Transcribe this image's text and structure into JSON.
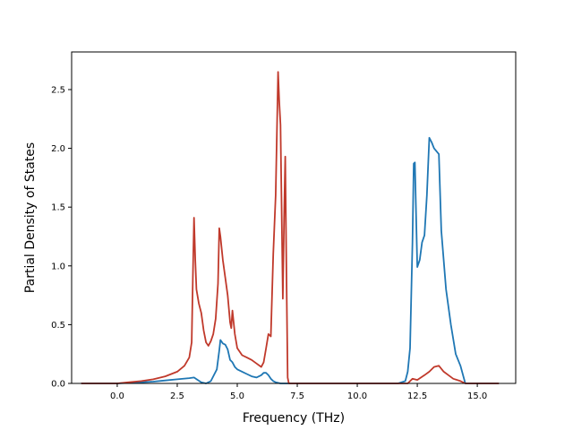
{
  "chart_data": {
    "type": "line",
    "title": "",
    "xlabel": "Frequency (THz)",
    "ylabel": "Partial Density of States",
    "xlim": [
      -1.9,
      16.6
    ],
    "ylim": [
      0,
      2.82
    ],
    "xticks": [
      0.0,
      2.5,
      5.0,
      7.5,
      10.0,
      12.5,
      15.0
    ],
    "xtick_labels": [
      "0.0",
      "2.5",
      "5.0",
      "7.5",
      "10.0",
      "12.5",
      "15.0"
    ],
    "yticks": [
      0.0,
      0.5,
      1.0,
      1.5,
      2.0,
      2.5
    ],
    "ytick_labels": [
      "0.0",
      "0.5",
      "1.0",
      "1.5",
      "2.0",
      "2.5"
    ],
    "grid": false,
    "legend": "none",
    "series": [
      {
        "color": "#1f77b4",
        "x": [
          -1.5,
          0.0,
          0.5,
          1.0,
          1.5,
          2.0,
          2.5,
          3.0,
          3.2,
          3.35,
          3.5,
          3.7,
          3.9,
          4.0,
          4.15,
          4.25,
          4.3,
          4.4,
          4.5,
          4.6,
          4.7,
          4.8,
          4.9,
          5.0,
          5.2,
          5.4,
          5.6,
          5.8,
          6.0,
          6.1,
          6.2,
          6.3,
          6.4,
          6.5,
          6.6,
          6.8,
          7.0,
          7.2,
          8.0,
          10.0,
          11.7,
          12.0,
          12.1,
          12.2,
          12.3,
          12.35,
          12.4,
          12.5,
          12.6,
          12.7,
          12.8,
          12.9,
          13.0,
          13.1,
          13.2,
          13.4,
          13.5,
          13.7,
          13.9,
          14.1,
          14.3,
          14.5,
          15.0,
          15.9
        ],
        "y": [
          0.0,
          0.0,
          0.005,
          0.01,
          0.015,
          0.025,
          0.035,
          0.045,
          0.05,
          0.03,
          0.01,
          0.0,
          0.02,
          0.06,
          0.12,
          0.28,
          0.37,
          0.34,
          0.33,
          0.29,
          0.2,
          0.18,
          0.14,
          0.12,
          0.1,
          0.08,
          0.06,
          0.05,
          0.07,
          0.09,
          0.09,
          0.07,
          0.04,
          0.02,
          0.01,
          0.0,
          0.0,
          0.0,
          0.0,
          0.0,
          0.0,
          0.02,
          0.1,
          0.3,
          1.2,
          1.87,
          1.88,
          0.99,
          1.05,
          1.2,
          1.26,
          1.6,
          2.09,
          2.05,
          2.0,
          1.95,
          1.3,
          0.8,
          0.5,
          0.25,
          0.15,
          0.0,
          0.0,
          0.0
        ]
      },
      {
        "color": "#c0392b",
        "x": [
          -1.5,
          0.0,
          0.5,
          1.0,
          1.5,
          2.0,
          2.5,
          2.8,
          3.0,
          3.1,
          3.15,
          3.2,
          3.25,
          3.3,
          3.4,
          3.5,
          3.6,
          3.7,
          3.8,
          3.9,
          4.0,
          4.1,
          4.2,
          4.25,
          4.3,
          4.4,
          4.5,
          4.6,
          4.7,
          4.75,
          4.8,
          4.9,
          5.0,
          5.2,
          5.4,
          5.6,
          5.8,
          6.0,
          6.1,
          6.2,
          6.3,
          6.4,
          6.5,
          6.6,
          6.7,
          6.75,
          6.8,
          6.9,
          6.95,
          7.0,
          7.05,
          7.1,
          7.15,
          7.2,
          8.0,
          10.0,
          12.0,
          12.1,
          12.3,
          12.5,
          12.8,
          13.0,
          13.2,
          13.4,
          13.6,
          13.8,
          14.0,
          14.3,
          14.5,
          15.0,
          15.9
        ],
        "y": [
          0.0,
          0.0,
          0.01,
          0.02,
          0.035,
          0.06,
          0.1,
          0.15,
          0.22,
          0.35,
          0.9,
          1.41,
          1.05,
          0.8,
          0.68,
          0.6,
          0.45,
          0.35,
          0.32,
          0.36,
          0.42,
          0.55,
          0.85,
          1.32,
          1.25,
          1.05,
          0.9,
          0.75,
          0.52,
          0.47,
          0.62,
          0.42,
          0.3,
          0.24,
          0.22,
          0.2,
          0.17,
          0.14,
          0.18,
          0.3,
          0.42,
          0.4,
          1.1,
          1.6,
          2.65,
          2.4,
          2.2,
          0.72,
          1.4,
          1.93,
          0.9,
          0.05,
          0.0,
          0.0,
          0.0,
          0.0,
          0.0,
          0.0,
          0.04,
          0.03,
          0.07,
          0.1,
          0.14,
          0.15,
          0.1,
          0.07,
          0.04,
          0.02,
          0.0,
          0.0,
          0.0
        ]
      }
    ]
  }
}
